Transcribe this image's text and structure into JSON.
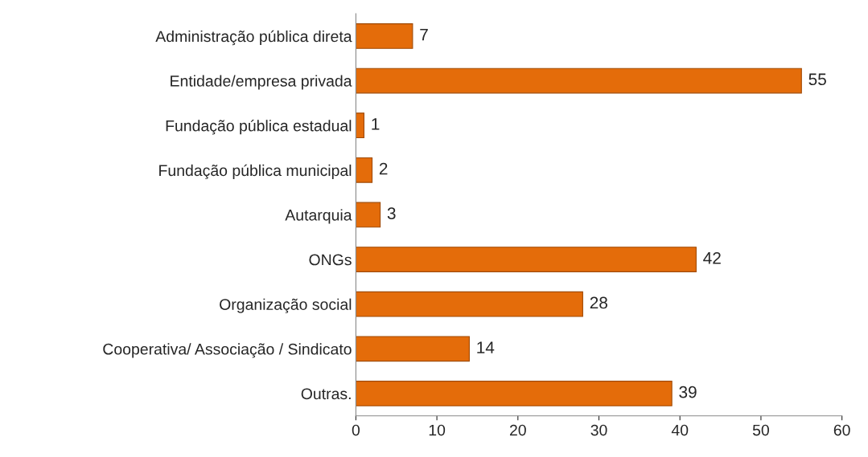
{
  "chart_data": {
    "type": "bar",
    "orientation": "horizontal",
    "categories": [
      "Administração pública direta",
      "Entidade/empresa privada",
      "Fundação pública estadual",
      "Fundação pública municipal",
      "Autarquia",
      "ONGs",
      "Organização social",
      "Cooperativa/ Associação / Sindicato",
      "Outras."
    ],
    "values": [
      7,
      55,
      1,
      2,
      3,
      42,
      28,
      14,
      39
    ],
    "color": "#e46c0a",
    "xlim": [
      0,
      60
    ],
    "xticks": [
      0,
      10,
      20,
      30,
      40,
      50,
      60
    ],
    "data_labels": true,
    "grid": false
  }
}
